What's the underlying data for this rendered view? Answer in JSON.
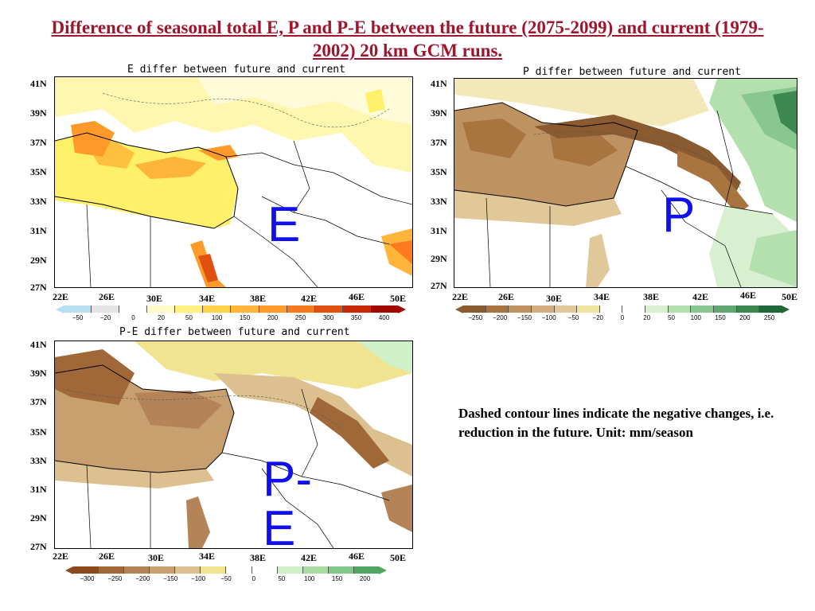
{
  "title": "Difference of seasonal total E, P and P-E between the future (2075-2099) and current (1979-2002) 20 km GCM runs.",
  "panels": {
    "e": {
      "title": "E differ between future and current",
      "label": "E",
      "lats": [
        "41N",
        "39N",
        "37N",
        "35N",
        "33N",
        "31N",
        "29N",
        "27N"
      ],
      "lons": [
        "22E",
        "26E",
        "30E",
        "34E",
        "38E",
        "42E",
        "46E",
        "50E"
      ],
      "scale": [
        "−50",
        "−20",
        "0",
        "20",
        "50",
        "100",
        "150",
        "200",
        "250",
        "300",
        "350",
        "400"
      ],
      "colors": [
        "#b8e0f0",
        "#e4e4e4",
        "#ffffff",
        "#fffac8",
        "#fff080",
        "#ffd24a",
        "#ffb43a",
        "#ff9a2a",
        "#f57a1c",
        "#e0500e",
        "#c82808",
        "#a00800"
      ]
    },
    "p": {
      "title": "P differ between future and current",
      "label": "P",
      "lats": [
        "41N",
        "39N",
        "37N",
        "35N",
        "33N",
        "31N",
        "29N",
        "27N"
      ],
      "lons": [
        "22E",
        "26E",
        "30E",
        "34E",
        "38E",
        "42E",
        "46E",
        "50E"
      ],
      "scale": [
        "−250",
        "−200",
        "−150",
        "−100",
        "−50",
        "−20",
        "0",
        "20",
        "50",
        "100",
        "150",
        "200",
        "250"
      ],
      "colors": [
        "#8a5a30",
        "#a8743f",
        "#bf9262",
        "#d2ad80",
        "#e0c898",
        "#f0e4a0",
        "#ffffff",
        "#ffffff",
        "#d8f0d0",
        "#b4e0b0",
        "#88c890",
        "#60a870",
        "#3c8850",
        "#206838"
      ]
    },
    "pe": {
      "title": "P-E differ between future and current",
      "label": "P-E",
      "lats": [
        "41N",
        "39N",
        "37N",
        "35N",
        "33N",
        "31N",
        "29N",
        "27N"
      ],
      "lons": [
        "22E",
        "26E",
        "30E",
        "34E",
        "38E",
        "42E",
        "46E",
        "50E"
      ],
      "scale": [
        "−300",
        "−250",
        "−200",
        "−150",
        "−100",
        "−50",
        "0",
        "50",
        "100",
        "150",
        "200"
      ],
      "colors": [
        "#8a4a1e",
        "#a06838",
        "#b48458",
        "#c8a070",
        "#dcc090",
        "#f0e490",
        "#ffffff",
        "#ffffff",
        "#d0f0c8",
        "#a8dca0",
        "#80c888",
        "#50a860"
      ]
    }
  },
  "note": "Dashed contour lines indicate the negative changes, i.e. reduction in the future. Unit: mm/season"
}
